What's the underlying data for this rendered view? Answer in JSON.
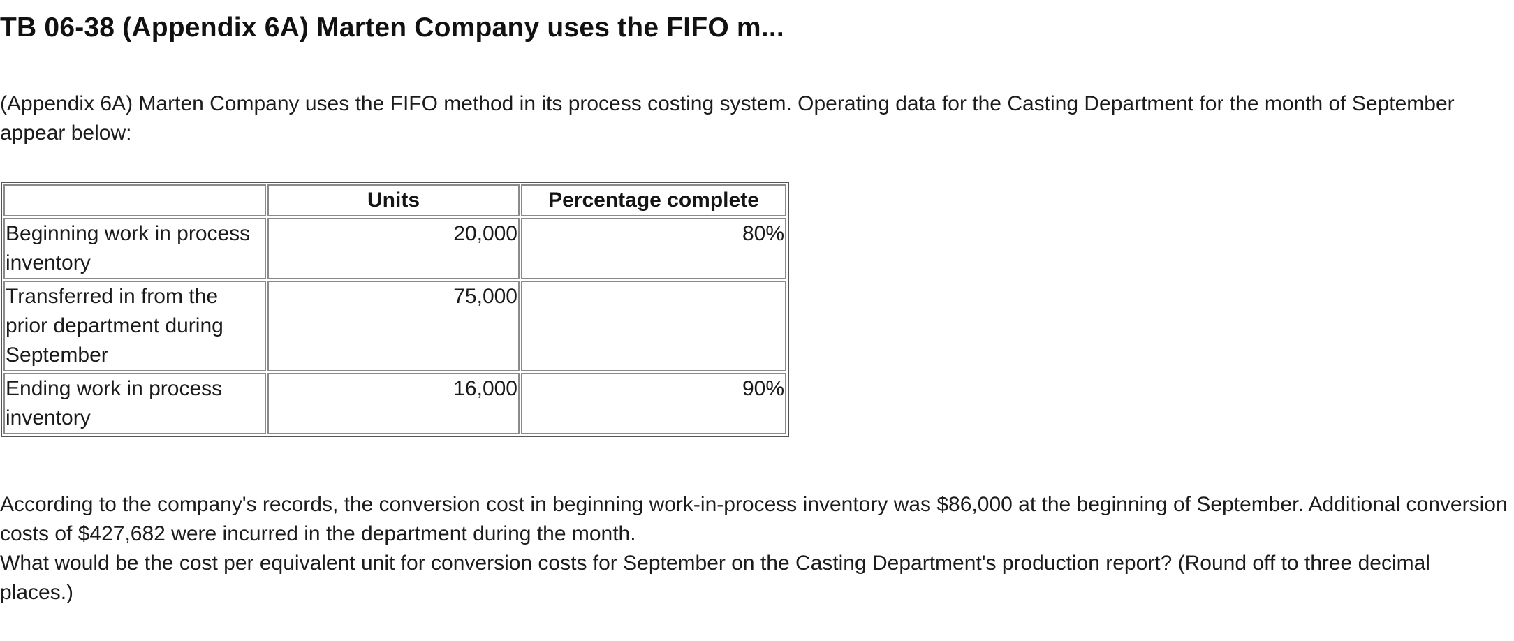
{
  "title": "TB 06-38 (Appendix 6A) Marten Company uses the FIFO m...",
  "intro": "(Appendix 6A) Marten Company uses the FIFO method in its process costing system. Operating data for the Casting Department for the month of September appear below:",
  "table": {
    "headers": [
      "",
      "Units",
      "Percentage complete"
    ],
    "rows": [
      {
        "label": "Beginning work in process inventory",
        "units": "20,000",
        "percent": "80%"
      },
      {
        "label": "Transferred in from the prior department during September",
        "units": "75,000",
        "percent": ""
      },
      {
        "label": "Ending work in process inventory",
        "units": "16,000",
        "percent": "90%"
      }
    ]
  },
  "closing": {
    "line1": "According to the company's records, the conversion cost in beginning work-in-process inventory was $86,000 at the beginning of September. Additional conversion costs of $427,682 were incurred in the department during the month.",
    "question": "What would be the cost per equivalent unit for conversion costs for September on the Casting Department's production report? (Round off to three decimal places.)"
  }
}
